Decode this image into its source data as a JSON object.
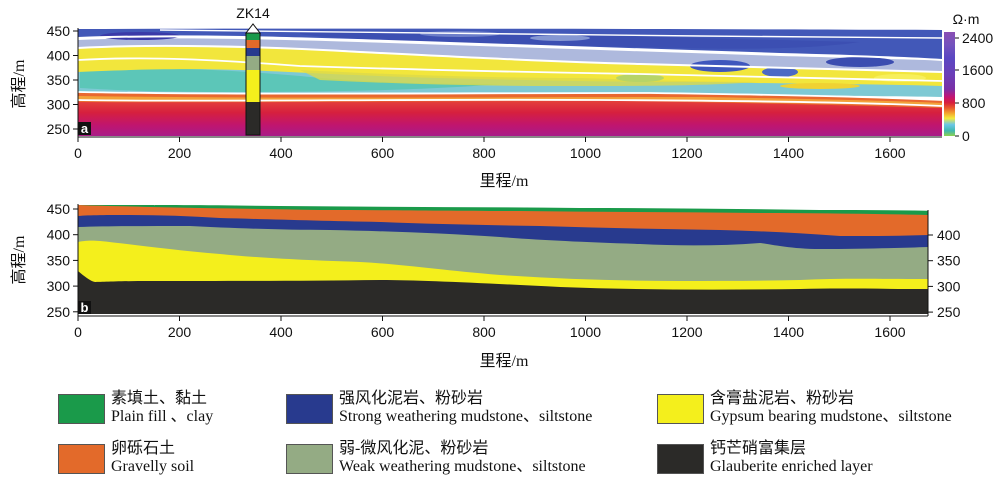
{
  "panel_a": {
    "label": "a",
    "borehole": "ZK14",
    "y_label": "高程/m",
    "x_label": "里程/m",
    "y_ticks": [
      "450",
      "400",
      "350",
      "300",
      "250"
    ],
    "x_ticks": [
      "0",
      "200",
      "400",
      "600",
      "800",
      "1000",
      "1200",
      "1400",
      "1600"
    ],
    "colorbar": {
      "unit": "Ω·m",
      "ticks": [
        "2400",
        "1600",
        "800",
        "0"
      ],
      "colors": [
        "#7c3fa2",
        "#8a52b6",
        "#5a3db0",
        "#3c55c8",
        "#4e8fd6",
        "#78b7e8",
        "#aee3ee",
        "#52c9c2",
        "#b4d36f",
        "#f6ea3e",
        "#f3b53a",
        "#e96a3a",
        "#d82440",
        "#b7148a",
        "#9c2ca9"
      ]
    }
  },
  "panel_b": {
    "label": "b",
    "y_label": "高程/m",
    "x_label": "里程/m",
    "y_ticks": [
      "450",
      "400",
      "350",
      "300",
      "250"
    ],
    "right_ticks": [
      "400",
      "350",
      "300",
      "250"
    ],
    "x_ticks": [
      "0",
      "200",
      "400",
      "600",
      "800",
      "1000",
      "1200",
      "1400",
      "1600"
    ]
  },
  "legend": [
    {
      "zh": "素填土、黏土",
      "en": "Plain fill 、clay",
      "color": "#1a9a4a"
    },
    {
      "zh": "强风化泥岩、粉砂岩",
      "en": "Strong weathering mudstone、siltstone",
      "color": "#283a8e"
    },
    {
      "zh": "含膏盐泥岩、粉砂岩",
      "en": "Gypsum bearing mudstone、siltstone",
      "color": "#f4ef1c"
    },
    {
      "zh": "卵砾石土",
      "en": "Gravelly soil",
      "color": "#e36a2a"
    },
    {
      "zh": "弱-微风化泥、粉砂岩",
      "en": "Weak weathering mudstone、siltstone",
      "color": "#94ab84"
    },
    {
      "zh": "钙芒硝富集层",
      "en": "Glauberite enriched layer",
      "color": "#2b2a28"
    }
  ]
}
